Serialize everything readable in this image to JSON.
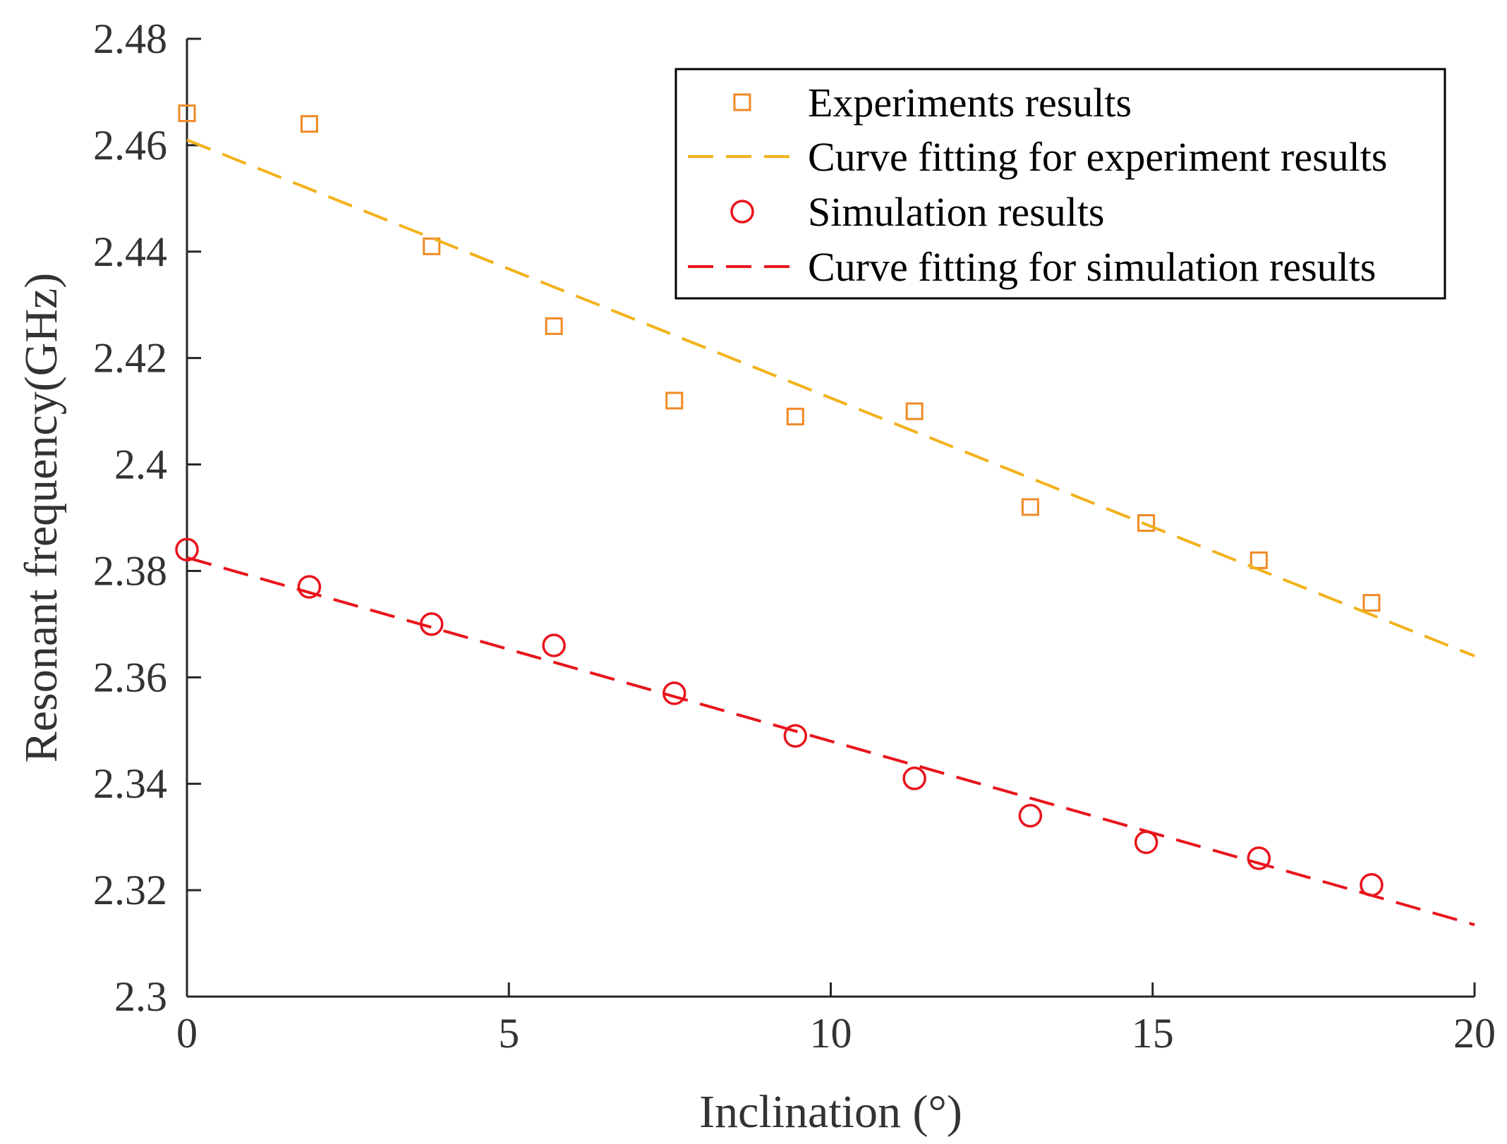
{
  "colors": {
    "experiment": "#F08A24",
    "experiment_fit": "#F2B21C",
    "simulation": "#E8141C",
    "simulation_fit": "#E8141C",
    "axis": "#262626",
    "text": "#333333"
  },
  "chart_data": {
    "type": "scatter",
    "title": "",
    "xlabel": "Inclination (°)",
    "ylabel": "Resonant frequency(GHz)",
    "xlim": [
      0,
      20
    ],
    "ylim": [
      2.3,
      2.48
    ],
    "xticks": [
      0,
      5,
      10,
      15,
      20
    ],
    "xtick_labels": [
      "0",
      "5",
      "10",
      "15",
      "20"
    ],
    "yticks": [
      2.3,
      2.32,
      2.34,
      2.36,
      2.38,
      2.4,
      2.42,
      2.44,
      2.46,
      2.48
    ],
    "ytick_labels": [
      "2.3",
      "2.32",
      "2.34",
      "2.36",
      "2.38",
      "2.4",
      "2.42",
      "2.44",
      "2.46",
      "2.48"
    ],
    "grid": false,
    "legend_position": "top-right",
    "series": [
      {
        "name": "Experiments results",
        "kind": "markers",
        "marker": "square",
        "color_key": "experiment",
        "x": [
          0,
          1.9,
          3.8,
          5.7,
          7.57,
          9.45,
          11.3,
          13.1,
          14.9,
          16.65,
          18.4
        ],
        "y": [
          2.466,
          2.464,
          2.441,
          2.426,
          2.412,
          2.409,
          2.41,
          2.392,
          2.389,
          2.382,
          2.374
        ]
      },
      {
        "name": "Curve fitting for experiment results",
        "kind": "dashed-line",
        "color_key": "experiment_fit",
        "x": [
          0,
          20
        ],
        "y": [
          2.461,
          2.364
        ]
      },
      {
        "name": "Simulation results",
        "kind": "markers",
        "marker": "circle",
        "color_key": "simulation",
        "x": [
          0,
          1.9,
          3.8,
          5.7,
          7.57,
          9.45,
          11.3,
          13.1,
          14.9,
          16.65,
          18.4
        ],
        "y": [
          2.384,
          2.377,
          2.37,
          2.366,
          2.357,
          2.349,
          2.341,
          2.334,
          2.329,
          2.326,
          2.321
        ]
      },
      {
        "name": "Curve fitting for simulation results",
        "kind": "dashed-line",
        "color_key": "simulation_fit",
        "x": [
          0,
          20
        ],
        "y": [
          2.3825,
          2.3135
        ]
      }
    ]
  }
}
